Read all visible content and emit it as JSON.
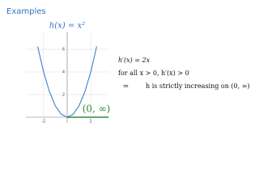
{
  "header": {
    "title": "Examples"
  },
  "chart_data": {
    "type": "line",
    "title": "h(x) = x²",
    "x": [
      -2.5,
      -2,
      -1.5,
      -1,
      -0.5,
      0,
      0.5,
      1,
      1.5,
      2,
      2.5
    ],
    "values": [
      6.25,
      4,
      2.25,
      1,
      0.25,
      0,
      0.25,
      1,
      2.25,
      4,
      6.25
    ],
    "color": "#2f74c0",
    "xlim": [
      -3.5,
      3.5
    ],
    "ylim": [
      -0.5,
      7.5
    ],
    "xticks": [
      -2,
      2
    ],
    "yticks": [
      2,
      4,
      6
    ],
    "grid": true,
    "annotation": "(0, ∞)",
    "annotation_color": "#2e8b3a"
  },
  "text": {
    "lines": [
      "h′(x) = 2x",
      "for all x > 0, h′(x) > 0"
    ],
    "conclusion": {
      "arrow": "⇒",
      "text": "h is strictly increasing on (0, ∞)"
    }
  }
}
